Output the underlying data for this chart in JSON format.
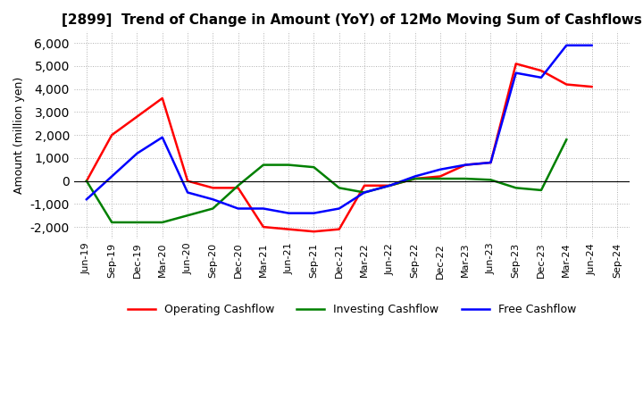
{
  "title": "[2899]  Trend of Change in Amount (YoY) of 12Mo Moving Sum of Cashflows",
  "ylabel": "Amount (million yen)",
  "ylim": [
    -2500,
    6500
  ],
  "yticks": [
    -2000,
    -1000,
    0,
    1000,
    2000,
    3000,
    4000,
    5000,
    6000
  ],
  "x_labels": [
    "Jun-19",
    "Sep-19",
    "Dec-19",
    "Mar-20",
    "Jun-20",
    "Sep-20",
    "Dec-20",
    "Mar-21",
    "Jun-21",
    "Sep-21",
    "Dec-21",
    "Mar-22",
    "Jun-22",
    "Sep-22",
    "Dec-22",
    "Mar-23",
    "Jun-23",
    "Sep-23",
    "Dec-23",
    "Mar-24",
    "Jun-24",
    "Sep-24"
  ],
  "operating": [
    0,
    2000,
    2800,
    3600,
    0,
    -300,
    -300,
    -2000,
    -2100,
    -2200,
    -2100,
    -200,
    -200,
    100,
    200,
    700,
    800,
    5100,
    4800,
    4200,
    4100,
    null
  ],
  "investing": [
    0,
    -1800,
    -1800,
    -1800,
    -1500,
    -1200,
    -200,
    700,
    700,
    600,
    -300,
    -500,
    -200,
    100,
    100,
    100,
    50,
    -300,
    -400,
    1800,
    null,
    null
  ],
  "free": [
    -800,
    200,
    1200,
    1900,
    -500,
    -800,
    -1200,
    -1200,
    -1400,
    -1400,
    -1200,
    -500,
    -200,
    200,
    500,
    700,
    800,
    4700,
    4500,
    5900,
    5900,
    null
  ],
  "operating_color": "#ff0000",
  "investing_color": "#008000",
  "free_color": "#0000ff",
  "background_color": "#ffffff",
  "grid_color": "#b0b0b0",
  "grid_style": "dotted"
}
